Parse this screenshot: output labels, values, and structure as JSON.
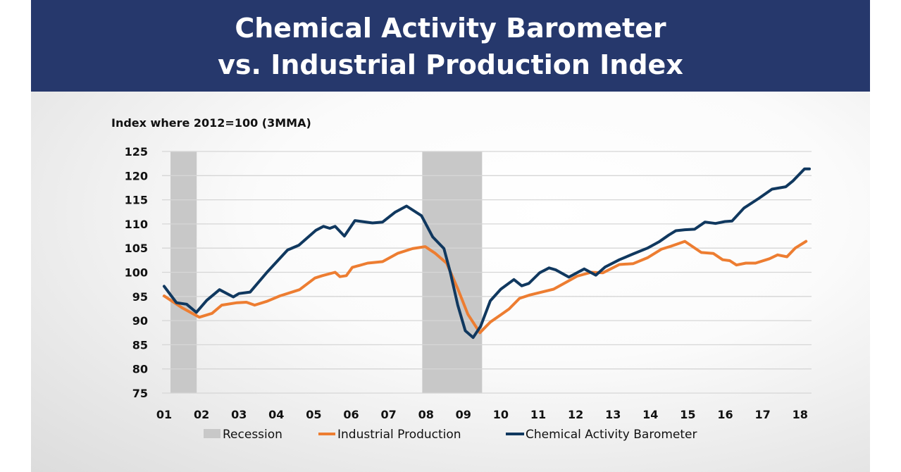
{
  "header": {
    "title_line1": "Chemical Activity Barometer",
    "title_line2": "vs. Industrial Production Index"
  },
  "chart_data": {
    "type": "line",
    "title": "Chemical Activity Barometer vs. Industrial Production Index",
    "ylabel": "Index where 2012=100 (3MMA)",
    "ylim": [
      75,
      125
    ],
    "yticks": [
      "125",
      "120",
      "115",
      "110",
      "105",
      "100",
      "95",
      "90",
      "85",
      "80",
      "75"
    ],
    "xlim": [
      2001,
      2018.3
    ],
    "xticks": [
      "01",
      "02",
      "03",
      "04",
      "05",
      "06",
      "07",
      "08",
      "09",
      "10",
      "11",
      "12",
      "13",
      "14",
      "15",
      "16",
      "17",
      "18"
    ],
    "grid": "horizontal",
    "legend_placement": "bottom",
    "colors": {
      "recession": "#c8c8c8",
      "industrial_production": "#ed7d31",
      "cab": "#10385f"
    },
    "recessions": [
      {
        "start": 2001.17,
        "end": 2001.87
      },
      {
        "start": 2007.9,
        "end": 2009.5
      }
    ],
    "series": [
      {
        "name": "Industrial Production",
        "x": [
          2001.0,
          2001.47,
          2001.94,
          2002.28,
          2002.54,
          2002.95,
          2003.2,
          2003.42,
          2003.75,
          2004.09,
          2004.62,
          2005.03,
          2005.23,
          2005.57,
          2005.7,
          2005.87,
          2006.03,
          2006.44,
          2006.84,
          2007.24,
          2007.64,
          2007.98,
          2008.25,
          2008.55,
          2008.85,
          2009.12,
          2009.44,
          2009.72,
          2010.0,
          2010.22,
          2010.5,
          2010.78,
          2011.04,
          2011.41,
          2011.76,
          2012.04,
          2012.42,
          2012.73,
          2013.17,
          2013.54,
          2013.92,
          2014.3,
          2014.55,
          2014.92,
          2015.36,
          2015.68,
          2015.93,
          2016.12,
          2016.3,
          2016.55,
          2016.81,
          2017.18,
          2017.4,
          2017.65,
          2017.87,
          2018.16
        ],
        "values": [
          95.1,
          92.7,
          90.7,
          91.5,
          93.2,
          93.7,
          93.8,
          93.2,
          94.0,
          95.1,
          96.4,
          98.8,
          99.3,
          100.0,
          99.1,
          99.3,
          101.0,
          101.9,
          102.2,
          103.9,
          104.9,
          105.3,
          103.9,
          101.9,
          96.6,
          91.3,
          87.5,
          89.7,
          91.2,
          92.4,
          94.6,
          95.3,
          95.8,
          96.5,
          98.0,
          99.2,
          100.0,
          99.9,
          101.6,
          101.8,
          103.0,
          104.8,
          105.4,
          106.4,
          104.1,
          103.9,
          102.6,
          102.4,
          101.5,
          101.9,
          101.9,
          102.8,
          103.6,
          103.2,
          105.0,
          106.4
        ]
      },
      {
        "name": "Chemical Activity Barometer",
        "x": [
          2001.0,
          2001.33,
          2001.6,
          2001.86,
          2002.14,
          2002.48,
          2002.85,
          2003.0,
          2003.3,
          2003.75,
          2004.3,
          2004.6,
          2005.06,
          2005.26,
          2005.43,
          2005.57,
          2005.82,
          2006.1,
          2006.57,
          2006.84,
          2007.17,
          2007.48,
          2007.88,
          2008.18,
          2008.48,
          2008.65,
          2008.85,
          2009.05,
          2009.26,
          2009.46,
          2009.72,
          2010.0,
          2010.35,
          2010.56,
          2010.75,
          2011.04,
          2011.29,
          2011.47,
          2011.82,
          2012.23,
          2012.54,
          2012.79,
          2013.17,
          2013.54,
          2013.92,
          2014.23,
          2014.49,
          2014.68,
          2014.92,
          2015.18,
          2015.46,
          2015.74,
          2015.99,
          2016.18,
          2016.5,
          2016.9,
          2017.25,
          2017.62,
          2017.81,
          2018.12,
          2018.25
        ],
        "values": [
          97.1,
          93.7,
          93.4,
          91.7,
          94.2,
          96.4,
          94.9,
          95.6,
          95.9,
          100.0,
          104.6,
          105.6,
          108.7,
          109.5,
          109.1,
          109.5,
          107.5,
          110.7,
          110.2,
          110.4,
          112.4,
          113.7,
          111.7,
          107.3,
          104.9,
          100.0,
          93.2,
          87.9,
          86.5,
          88.8,
          94.1,
          96.5,
          98.5,
          97.2,
          97.7,
          99.9,
          100.9,
          100.5,
          99.0,
          100.7,
          99.4,
          101.1,
          102.6,
          103.8,
          105.0,
          106.3,
          107.7,
          108.6,
          108.8,
          108.9,
          110.4,
          110.1,
          110.5,
          110.6,
          113.3,
          115.3,
          117.2,
          117.7,
          118.9,
          121.4,
          121.4
        ]
      }
    ],
    "legend": [
      "Recession",
      "Industrial Production",
      "Chemical Activity Barometer"
    ]
  }
}
